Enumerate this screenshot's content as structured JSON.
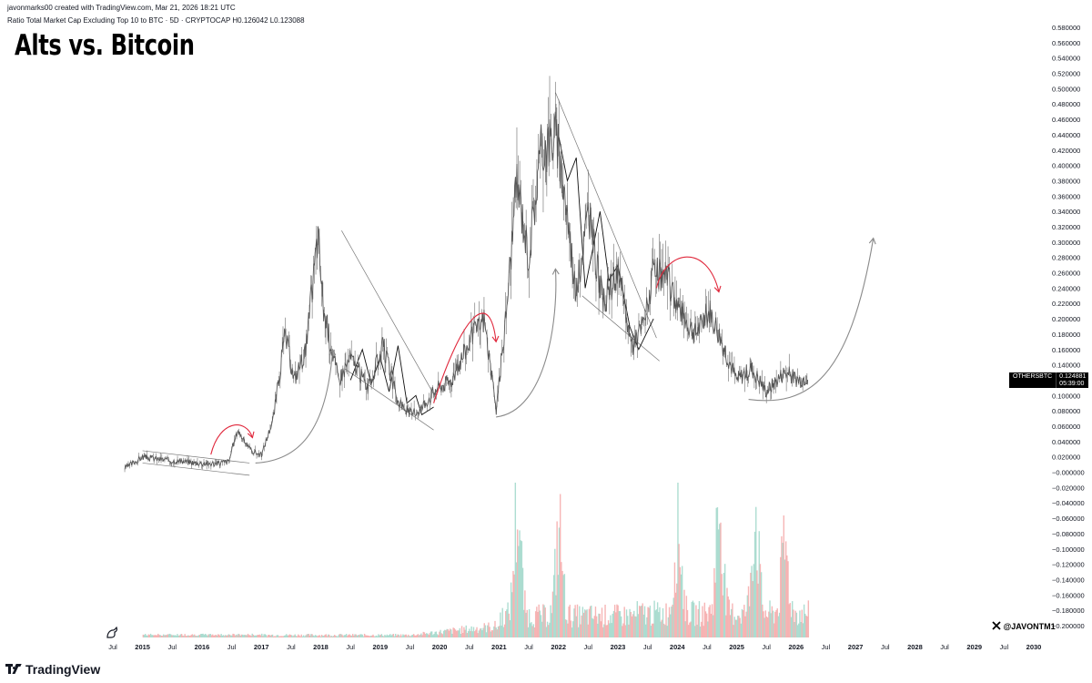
{
  "header": {
    "creator_line": "javonmarks00 created with TradingView.com, Mar 21, 2026 18:21 UTC",
    "symbol_line": "Ratio Total Market Cap Excluding Top 10 to BTC · 5D · CRYPTOCAP  H0.126042  L0.123088"
  },
  "title": "Alts vs. Bitcoin",
  "price_badge": {
    "symbol": "OTHERSBTC",
    "value": "0.124881",
    "countdown": "05:39:00"
  },
  "watermark": {
    "handle": "@JAVONTM1",
    "brand": "TradingView"
  },
  "icons": {
    "x_logo": "x-logo-icon",
    "tv_logo": "tradingview-logo-icon",
    "dino": "dino-icon"
  },
  "colors": {
    "price_line": "#555555",
    "red_arrow": "#e0283c",
    "gray_arrow": "#8a8a8a",
    "vol_up": "#9fd7c9",
    "vol_down": "#f4a8a8"
  },
  "chart_data": {
    "type": "line",
    "series": [
      {
        "name": "OTHERSBTC",
        "x": [
          2014.7,
          2015.0,
          2015.4,
          2015.8,
          2016.2,
          2016.45,
          2016.6,
          2016.8,
          2017.0,
          2017.2,
          2017.4,
          2017.55,
          2017.75,
          2017.95,
          2018.05,
          2018.3,
          2018.5,
          2018.8,
          2019.05,
          2019.3,
          2019.55,
          2019.7,
          2019.95,
          2020.2,
          2020.5,
          2020.75,
          2020.95,
          2021.1,
          2021.3,
          2021.5,
          2021.7,
          2021.95,
          2022.1,
          2022.3,
          2022.5,
          2022.75,
          2023.0,
          2023.25,
          2023.45,
          2023.6,
          2023.85,
          2024.05,
          2024.3,
          2024.55,
          2024.8,
          2025.0,
          2025.25,
          2025.5,
          2025.8,
          2026.05,
          2026.2
        ],
        "y": [
          0.005,
          0.02,
          0.016,
          0.013,
          0.011,
          0.014,
          0.055,
          0.03,
          0.022,
          0.07,
          0.18,
          0.12,
          0.16,
          0.31,
          0.21,
          0.12,
          0.15,
          0.11,
          0.165,
          0.09,
          0.075,
          0.085,
          0.11,
          0.12,
          0.17,
          0.2,
          0.08,
          0.19,
          0.38,
          0.28,
          0.42,
          0.44,
          0.37,
          0.23,
          0.34,
          0.22,
          0.26,
          0.16,
          0.2,
          0.26,
          0.25,
          0.21,
          0.18,
          0.21,
          0.16,
          0.12,
          0.135,
          0.105,
          0.13,
          0.12,
          0.125
        ]
      }
    ],
    "volume_peaks": [
      {
        "x": 2021.3,
        "v": 0.9
      },
      {
        "x": 2022.0,
        "v": 0.7
      },
      {
        "x": 2024.0,
        "v": 0.75
      },
      {
        "x": 2024.7,
        "v": 0.9
      },
      {
        "x": 2025.3,
        "v": 0.85
      },
      {
        "x": 2025.8,
        "v": 0.55
      }
    ],
    "price_ticks": [
      "0.580000",
      "0.560000",
      "0.540000",
      "0.520000",
      "0.500000",
      "0.480000",
      "0.460000",
      "0.440000",
      "0.420000",
      "0.400000",
      "0.380000",
      "0.360000",
      "0.340000",
      "0.320000",
      "0.300000",
      "0.280000",
      "0.260000",
      "0.240000",
      "0.220000",
      "0.200000",
      "0.180000",
      "0.160000",
      "0.140000",
      "0.120000",
      "0.100000",
      "0.080000",
      "0.060000",
      "0.040000",
      "0.020000",
      "−0.000000",
      "−0.020000",
      "−0.040000",
      "−0.060000",
      "−0.080000",
      "−0.100000",
      "−0.120000",
      "−0.140000",
      "−0.160000",
      "−0.180000",
      "−0.200000"
    ],
    "x_ticks": [
      "Jul",
      "2015",
      "Jul",
      "2016",
      "Jul",
      "2017",
      "Jul",
      "2018",
      "Jul",
      "2019",
      "Jul",
      "2020",
      "Jul",
      "2021",
      "Jul",
      "2022",
      "Jul",
      "2023",
      "Jul",
      "2024",
      "Jul",
      "2025",
      "Jul",
      "2026",
      "Jul",
      "2027",
      "Jul",
      "2028",
      "Jul",
      "2029",
      "Jul",
      "2030"
    ],
    "ylim": [
      -0.2,
      0.58
    ],
    "annotations": {
      "red_arrows": 4,
      "gray_arrows": 5,
      "trendline_pairs": 3
    }
  }
}
